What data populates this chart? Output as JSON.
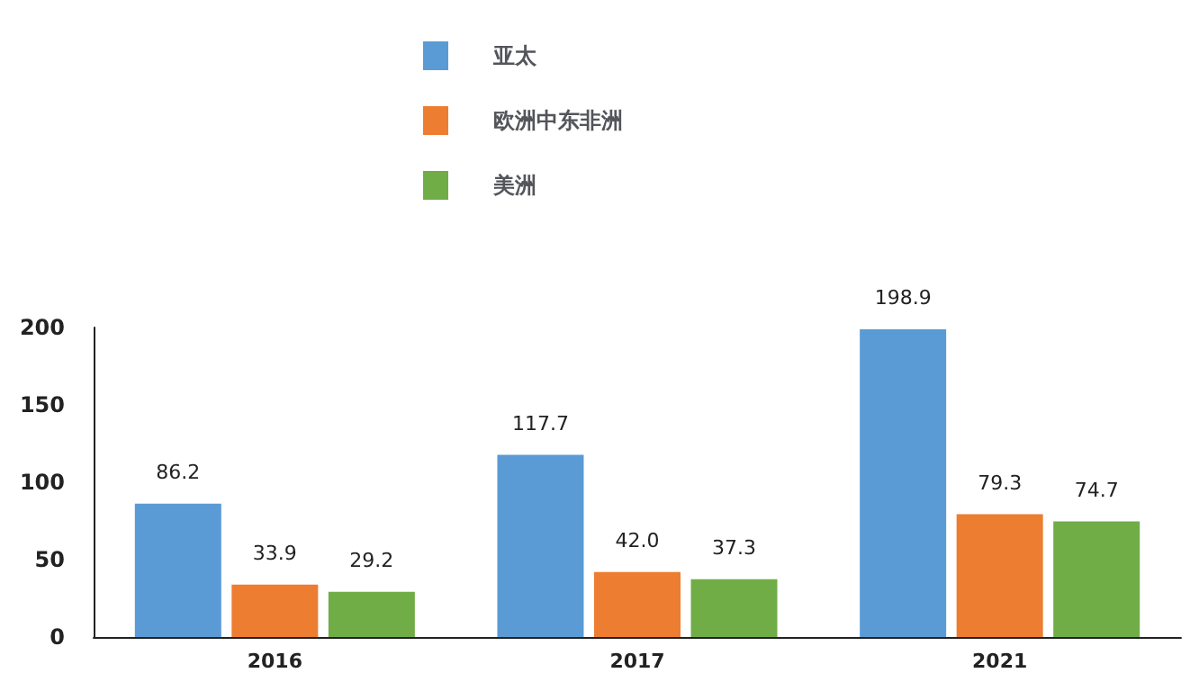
{
  "chart_data": {
    "type": "bar",
    "categories": [
      "2016",
      "2017",
      "2021"
    ],
    "series": [
      {
        "name": "亚太",
        "color": "#5b9bd5",
        "values": [
          86.2,
          117.7,
          198.9
        ],
        "value_labels": [
          "86.2",
          "117.7",
          "198.9"
        ]
      },
      {
        "name": "欧洲中东非洲",
        "color": "#ed7d31",
        "values": [
          33.9,
          42.0,
          79.3
        ],
        "value_labels": [
          "33.9",
          "42.0",
          "79.3"
        ]
      },
      {
        "name": "美洲",
        "color": "#70ad47",
        "values": [
          29.2,
          37.3,
          74.7
        ],
        "value_labels": [
          "29.2",
          "37.3",
          "74.7"
        ]
      }
    ],
    "ylim": [
      0,
      200
    ],
    "yticks": [
      0,
      50,
      100,
      150,
      200
    ],
    "grid": false,
    "legend": "top"
  }
}
